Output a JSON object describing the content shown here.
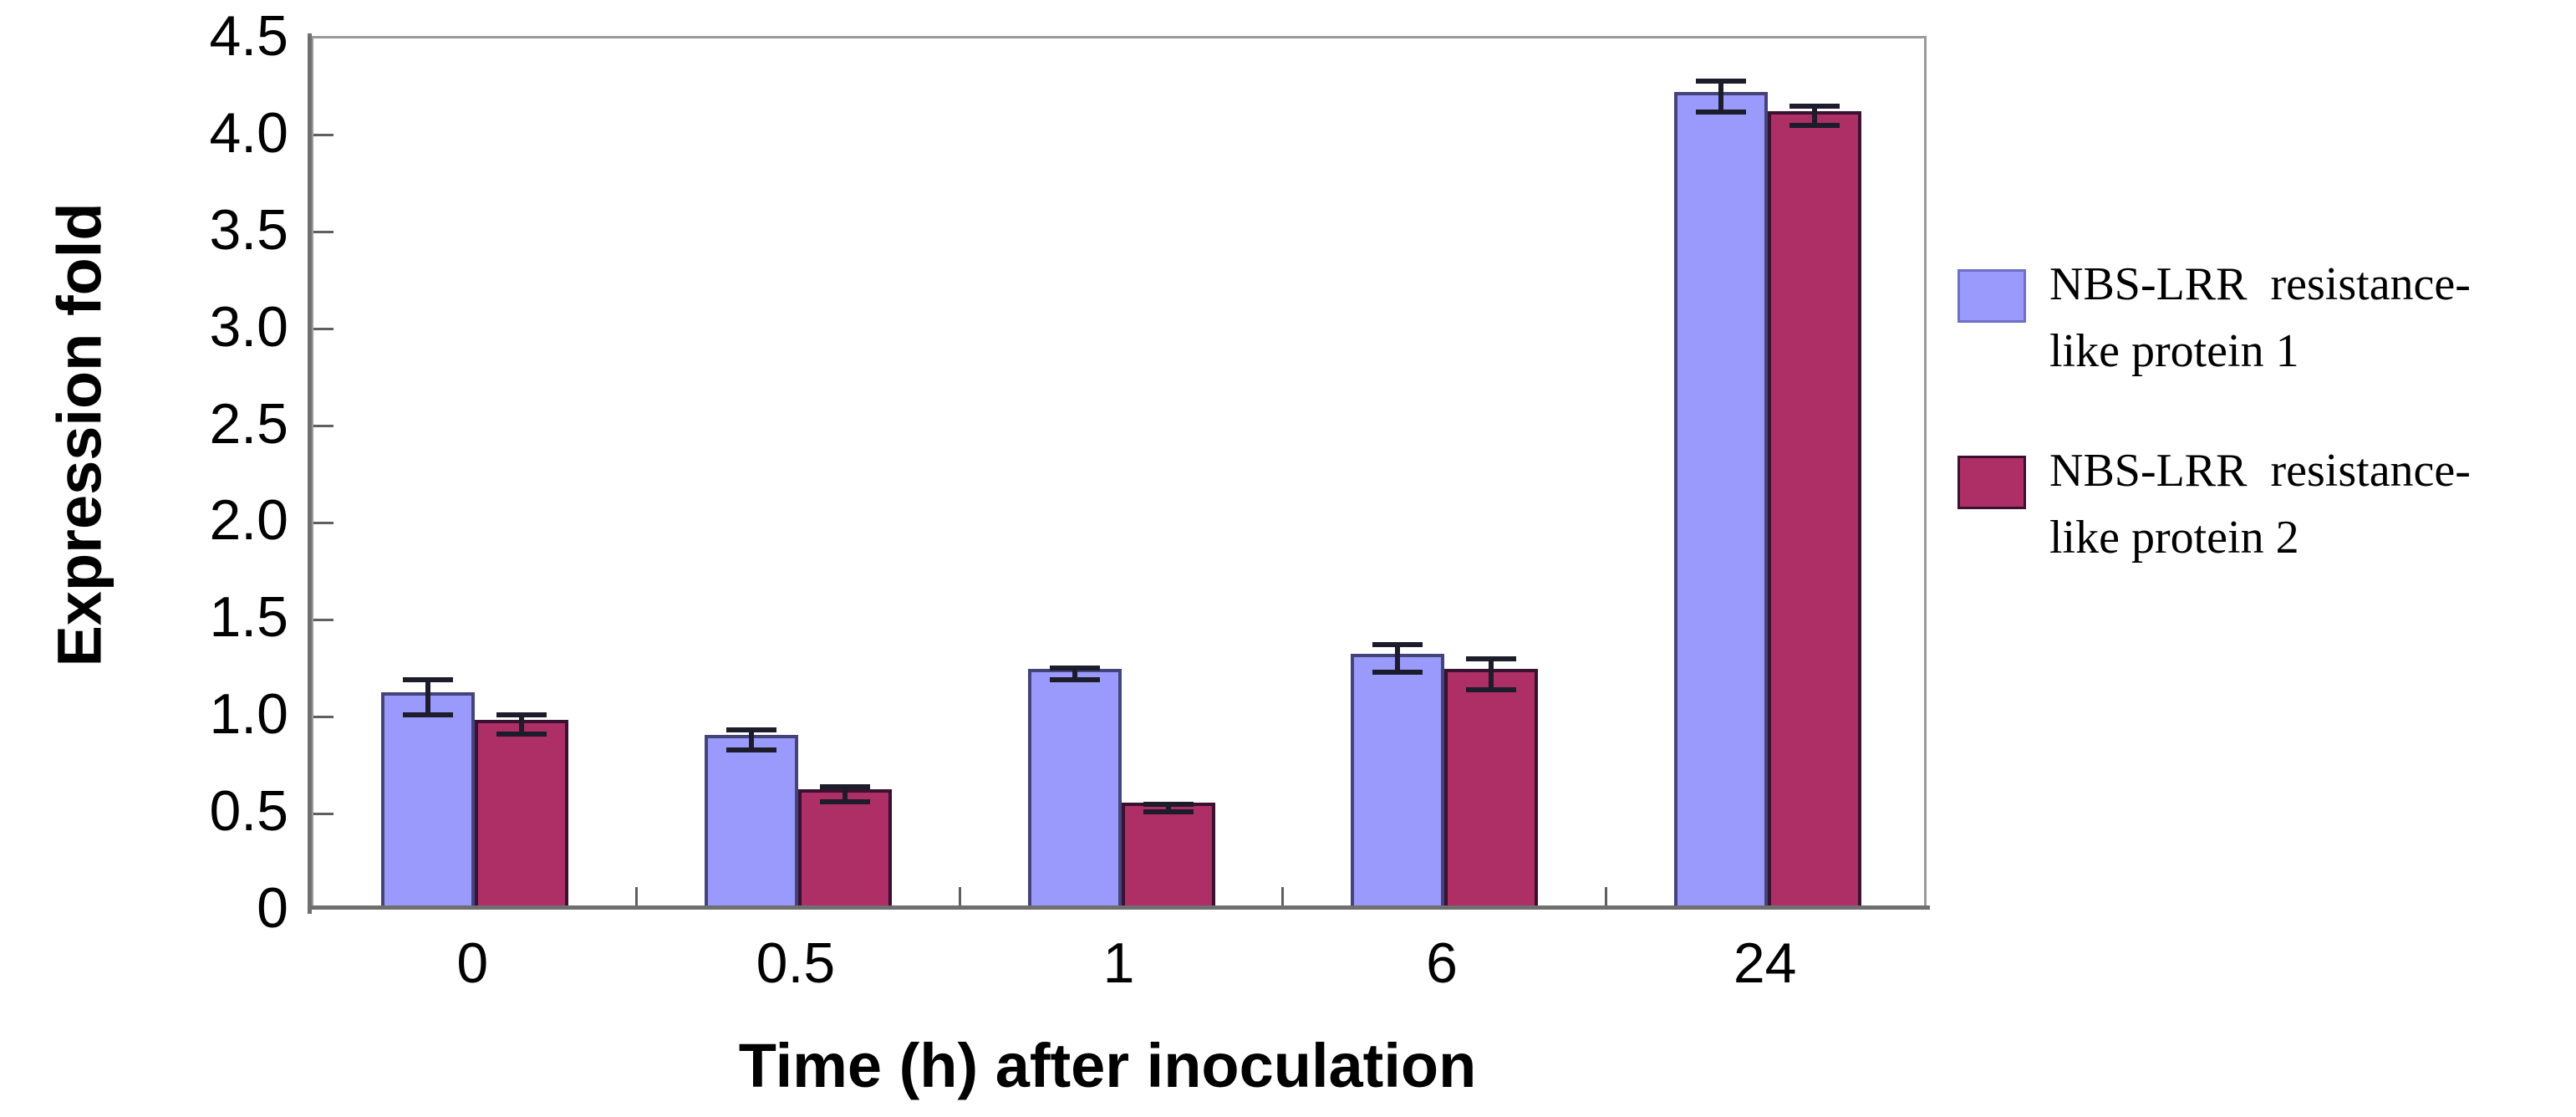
{
  "figure": {
    "legend": {
      "entries": [
        {
          "line1": "NBS-LRR  resistance-",
          "line2": "like protein 1"
        },
        {
          "line1": "NBS-LRR  resistance-",
          "line2": "like protein 2"
        }
      ]
    }
  },
  "chart_data": {
    "type": "bar",
    "title": "",
    "xlabel": "Time (h) after inoculation",
    "ylabel": "Expression fold",
    "categories": [
      "0",
      "0.5",
      "1",
      "6",
      "24"
    ],
    "series": [
      {
        "name": "NBS-LRR resistance-like protein 1",
        "color": "#9a99fc",
        "border_color": "#44447a",
        "values": [
          1.1,
          0.88,
          1.22,
          1.3,
          4.2
        ],
        "errors": [
          0.09,
          0.05,
          0.03,
          0.07,
          0.08
        ]
      },
      {
        "name": "NBS-LRR resistance-like protein 2",
        "color": "#ad2f66",
        "border_color": "#3a1130",
        "values": [
          0.96,
          0.6,
          0.53,
          1.22,
          4.1
        ],
        "errors": [
          0.05,
          0.04,
          0.02,
          0.08,
          0.05
        ]
      }
    ],
    "ylim": [
      0,
      4.5
    ],
    "ytick_step": 0.5,
    "y_tick_labels": [
      "4.5",
      "4.0",
      "3.5",
      "3.0",
      "2.5",
      "2.0",
      "1.5",
      "1.0",
      "0.5",
      "0"
    ],
    "grid": false,
    "legend_position": "right",
    "error_bar_color": "#1c1c2a",
    "plot_border_color": "#9a9a9a"
  }
}
